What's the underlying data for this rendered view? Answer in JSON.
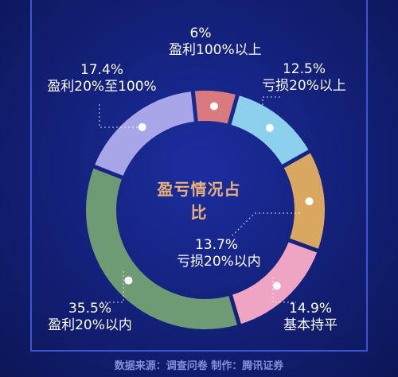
{
  "chart_data": {
    "type": "pie",
    "title": "盈亏情况占比",
    "slices": [
      {
        "label": "盈利100%以上",
        "value": 6,
        "value_text": "6%",
        "color": "#d97b7e"
      },
      {
        "label": "亏损20%以上",
        "value": 12.5,
        "value_text": "12.5%",
        "color": "#8dd0ee"
      },
      {
        "label": "亏损20%以内",
        "value": 13.7,
        "value_text": "13.7%",
        "color": "#d9a760"
      },
      {
        "label": "基本持平",
        "value": 14.9,
        "value_text": "14.9%",
        "color": "#f0a4c4"
      },
      {
        "label": "盈利20%以内",
        "value": 35.5,
        "value_text": "35.5%",
        "color": "#6e9a74"
      },
      {
        "label": "盈利20%至100%",
        "value": 17.4,
        "value_text": "17.4%",
        "color": "#a8a6e8"
      }
    ]
  },
  "source_text": "数据来源：调查问卷 制作：腾讯证券"
}
